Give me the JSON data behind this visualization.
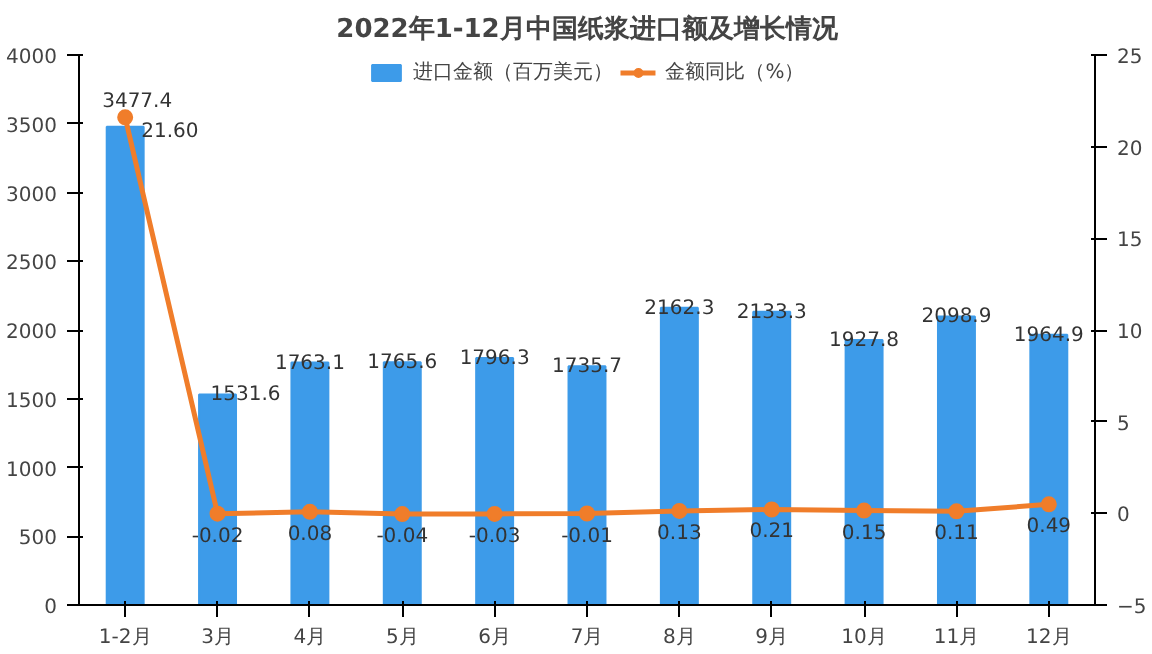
{
  "chart_data": {
    "type": "bar",
    "title": "2022年1-12月中国纸浆进口额及增长情况",
    "categories": [
      "1-2月",
      "3月",
      "4月",
      "5月",
      "6月",
      "7月",
      "8月",
      "9月",
      "10月",
      "11月",
      "12月"
    ],
    "series": [
      {
        "name": "进口金额（百万美元）",
        "color": "#3d9be9",
        "values": [
          3477.4,
          1531.6,
          1763.1,
          1765.6,
          1796.3,
          1735.7,
          2162.3,
          2133.3,
          1927.8,
          2098.9,
          1964.9
        ],
        "value_labels": [
          "3477.4",
          "1531.6",
          "1763.1",
          "1765.6",
          "1796.3",
          "1735.7",
          "2162.3",
          "2133.3",
          "1927.8",
          "2098.9",
          "1964.9"
        ]
      },
      {
        "name": "金额同比（%）",
        "color": "#f07d2a",
        "type": "line",
        "axis": "y2",
        "marker": "circle",
        "values": [
          21.6,
          -0.02,
          0.08,
          -0.04,
          -0.03,
          -0.01,
          0.13,
          0.21,
          0.15,
          0.11,
          0.49
        ],
        "value_labels": [
          "21.60",
          "-0.02",
          "0.08",
          "-0.04",
          "-0.03",
          "-0.01",
          "0.13",
          "0.21",
          "0.15",
          "0.11",
          "0.49"
        ]
      }
    ],
    "ylim": [
      0,
      4000
    ],
    "yticks": [
      0,
      500,
      1000,
      1500,
      2000,
      2500,
      3000,
      3500,
      4000
    ],
    "y2lim": [
      -5,
      25
    ],
    "y2ticks": [
      -5,
      0,
      5,
      10,
      15,
      20,
      25
    ],
    "grid": false,
    "legend": "top"
  }
}
